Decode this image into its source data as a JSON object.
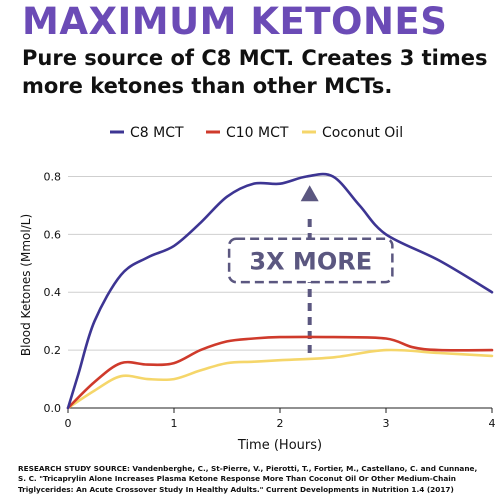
{
  "header": {
    "title": "MAXIMUM KETONES",
    "subtitle_line1": "Pure source of C8 MCT. Creates 3 times",
    "subtitle_line2": "more ketones than other MCTs."
  },
  "annotation": {
    "label": "3X MORE"
  },
  "source": {
    "line1": "RESEARCH STUDY SOURCE: Vandenberghe, C., St-Pierre, V., Pierotti, T., Fortier, M., Castellano, C. and Cunnane,",
    "line2": "S. C. \"Tricaprylin Alone Increases Plasma Ketone Response More Than Coconut Oil Or Other Medium-Chain",
    "line3": "Triglycerides: An Acute Crossover Study In Healthy Adults.\" Current Developments in Nutrition 1.4 (2017)"
  },
  "colors": {
    "title": "#6b4bb6",
    "c8": "#3d3593",
    "c10": "#cf3a2b",
    "coconut": "#f5d66a",
    "annotation": "#5b5780"
  },
  "chart_data": {
    "type": "line",
    "title": "",
    "xlabel": "Time (Hours)",
    "ylabel": "Blood Ketones (Mmol/L)",
    "xlim": [
      0,
      4
    ],
    "ylim": [
      0,
      0.85
    ],
    "xticks": [
      "0",
      "1",
      "2",
      "3",
      "4"
    ],
    "yticks": [
      "0.0",
      "0.2",
      "0.4",
      "0.6",
      "0.8"
    ],
    "grid": "horizontal",
    "legend_position": "top",
    "series": [
      {
        "name": "C8 MCT",
        "color": "#3d3593",
        "x": [
          0,
          0.1,
          0.25,
          0.5,
          0.75,
          1,
          1.25,
          1.5,
          1.75,
          2,
          2.25,
          2.5,
          2.75,
          3,
          3.5,
          4
        ],
        "y": [
          0,
          0.12,
          0.3,
          0.46,
          0.52,
          0.56,
          0.64,
          0.73,
          0.775,
          0.775,
          0.8,
          0.8,
          0.7,
          0.6,
          0.51,
          0.4
        ]
      },
      {
        "name": "C10 MCT",
        "color": "#cf3a2b",
        "x": [
          0,
          0.25,
          0.5,
          0.75,
          1,
          1.25,
          1.5,
          1.75,
          2,
          2.5,
          3,
          3.25,
          3.5,
          4
        ],
        "y": [
          0,
          0.09,
          0.155,
          0.15,
          0.155,
          0.2,
          0.23,
          0.24,
          0.245,
          0.245,
          0.24,
          0.21,
          0.2,
          0.2
        ]
      },
      {
        "name": "Coconut Oil",
        "color": "#f5d66a",
        "x": [
          0,
          0.25,
          0.5,
          0.75,
          1,
          1.25,
          1.5,
          1.75,
          2,
          2.5,
          3,
          3.5,
          4
        ],
        "y": [
          0,
          0.06,
          0.11,
          0.1,
          0.1,
          0.13,
          0.155,
          0.16,
          0.165,
          0.175,
          0.2,
          0.19,
          0.18
        ]
      }
    ]
  }
}
